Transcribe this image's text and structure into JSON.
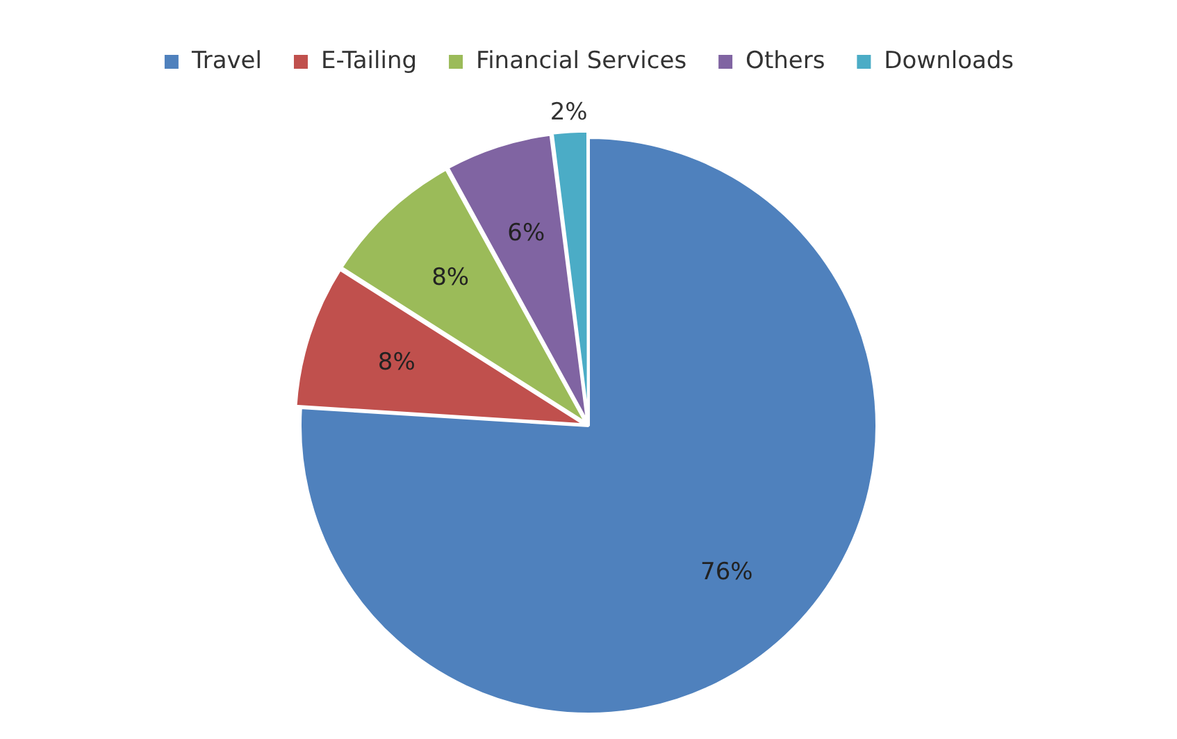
{
  "chart_data": {
    "type": "pie",
    "categories": [
      "Travel",
      "E-Tailing",
      "Financial Services",
      "Others",
      "Downloads"
    ],
    "values": [
      76,
      8,
      8,
      6,
      2
    ],
    "colors": [
      "#4f81bd",
      "#c0504d",
      "#9bbb59",
      "#8064a2",
      "#4bacc6"
    ],
    "value_labels": [
      "76%",
      "8%",
      "8%",
      "6%",
      "2%"
    ],
    "legend": "top"
  }
}
